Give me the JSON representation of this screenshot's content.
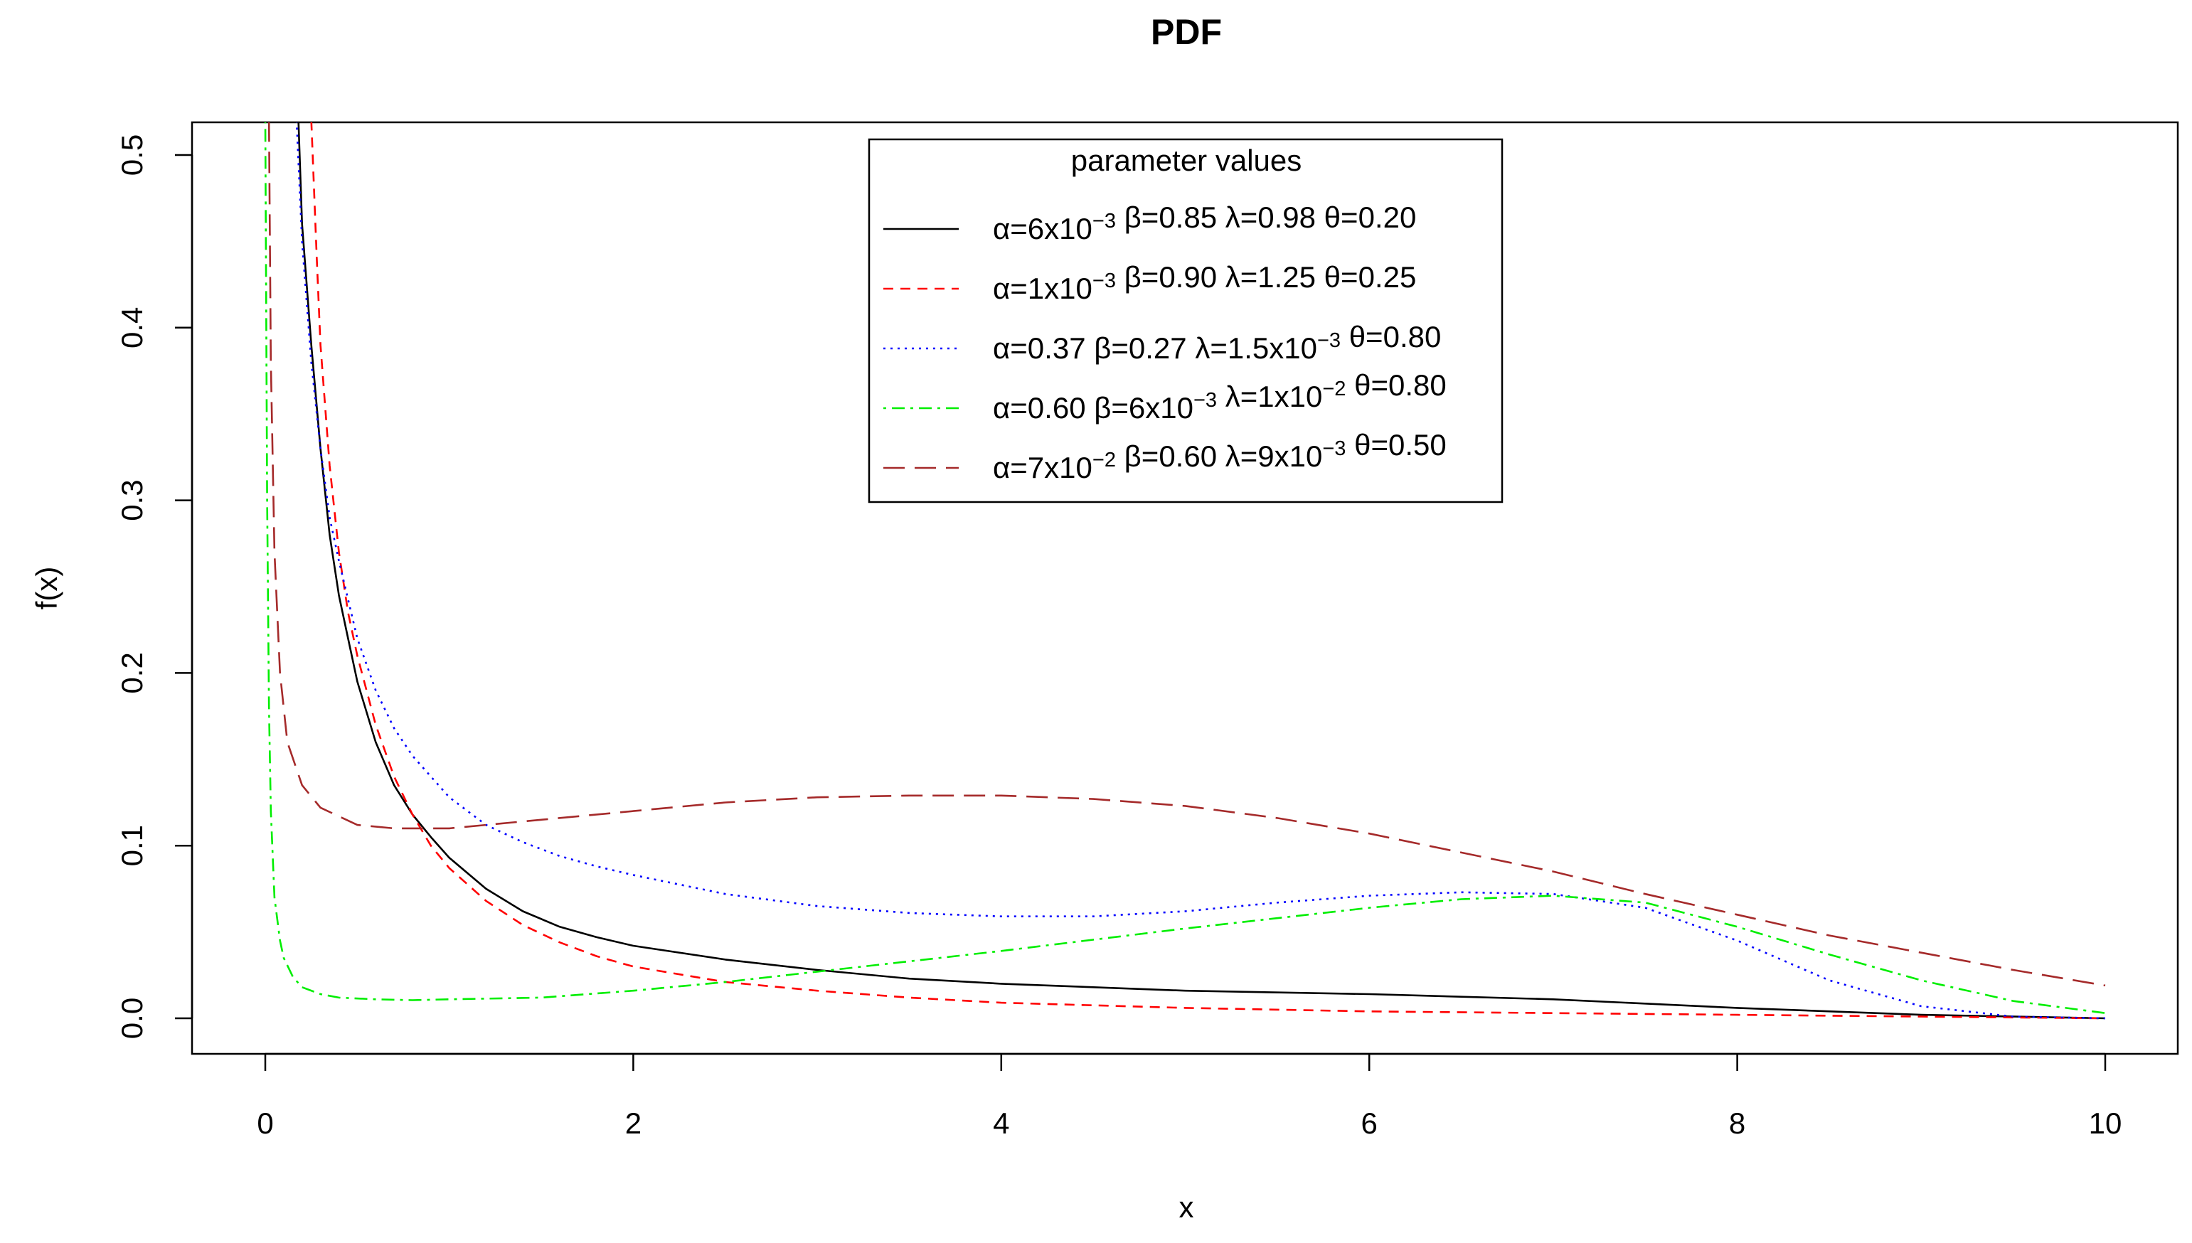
{
  "chart_data": {
    "type": "line",
    "title": "PDF",
    "xlabel": "x",
    "ylabel": "f(x)",
    "xlim": [
      0,
      10
    ],
    "ylim": [
      0,
      0.52
    ],
    "xticks": [
      "0",
      "2",
      "4",
      "6",
      "8",
      "10"
    ],
    "yticks": [
      "0.0",
      "0.1",
      "0.2",
      "0.3",
      "0.4",
      "0.5"
    ],
    "grid": false,
    "legend": {
      "title": "parameter values",
      "placement": "top-center"
    },
    "series": [
      {
        "name": "α=6x10⁻³ β=0.85 λ=0.98 θ=0.20",
        "legend_parts": [
          [
            "α=6x10",
            ""
          ],
          [
            "−3",
            "sup"
          ],
          [
            " β=0.85 λ=0.98 θ=0.20",
            ""
          ]
        ],
        "color": "#000000",
        "dash": "solid",
        "x": [
          0.18,
          0.2,
          0.25,
          0.3,
          0.35,
          0.4,
          0.45,
          0.5,
          0.6,
          0.7,
          0.8,
          0.9,
          1.0,
          1.2,
          1.4,
          1.6,
          1.8,
          2.0,
          2.5,
          3.0,
          3.5,
          4.0,
          5.0,
          6.0,
          7.0,
          8.0,
          9.0,
          10.0
        ],
        "y": [
          0.52,
          0.46,
          0.39,
          0.33,
          0.28,
          0.245,
          0.22,
          0.195,
          0.16,
          0.135,
          0.118,
          0.105,
          0.093,
          0.075,
          0.062,
          0.053,
          0.047,
          0.042,
          0.034,
          0.028,
          0.023,
          0.02,
          0.016,
          0.014,
          0.011,
          0.006,
          0.002,
          0.0
        ]
      },
      {
        "name": "α=1x10⁻³ β=0.90 λ=1.25 θ=0.25",
        "legend_parts": [
          [
            "α=1x10",
            ""
          ],
          [
            "−3",
            "sup"
          ],
          [
            " β=0.90 λ=1.25 θ=0.25",
            ""
          ]
        ],
        "color": "#ff0000",
        "dash": "dashed",
        "x": [
          0.25,
          0.28,
          0.3,
          0.35,
          0.4,
          0.45,
          0.5,
          0.6,
          0.7,
          0.8,
          0.9,
          1.0,
          1.2,
          1.4,
          1.6,
          1.8,
          2.0,
          2.5,
          3.0,
          3.5,
          4.0,
          5.0,
          6.0,
          7.0,
          8.0,
          9.0,
          10.0
        ],
        "y": [
          0.52,
          0.44,
          0.39,
          0.32,
          0.27,
          0.235,
          0.21,
          0.17,
          0.14,
          0.118,
          0.1,
          0.087,
          0.068,
          0.054,
          0.044,
          0.036,
          0.03,
          0.021,
          0.016,
          0.012,
          0.009,
          0.006,
          0.004,
          0.003,
          0.002,
          0.001,
          0.0
        ]
      },
      {
        "name": "α=0.37 β=0.27 λ=1.5x10⁻³ θ=0.80",
        "legend_parts": [
          [
            "α=0.37 β=0.27 λ=1.5x10",
            ""
          ],
          [
            "−3",
            "sup"
          ],
          [
            " θ=0.80",
            ""
          ]
        ],
        "color": "#0000ff",
        "dash": "dotted",
        "x": [
          0.17,
          0.2,
          0.25,
          0.3,
          0.35,
          0.4,
          0.5,
          0.6,
          0.7,
          0.8,
          1.0,
          1.2,
          1.4,
          1.6,
          1.8,
          2.0,
          2.5,
          3.0,
          3.5,
          4.0,
          4.5,
          5.0,
          5.5,
          6.0,
          6.5,
          7.0,
          7.5,
          8.0,
          8.5,
          9.0,
          9.5,
          10.0
        ],
        "y": [
          0.52,
          0.45,
          0.38,
          0.33,
          0.29,
          0.265,
          0.22,
          0.19,
          0.168,
          0.152,
          0.128,
          0.112,
          0.102,
          0.094,
          0.088,
          0.083,
          0.072,
          0.065,
          0.061,
          0.059,
          0.059,
          0.062,
          0.067,
          0.071,
          0.073,
          0.072,
          0.064,
          0.045,
          0.022,
          0.007,
          0.001,
          0.0
        ]
      },
      {
        "name": "α=0.60 β=6x10⁻³ λ=1x10⁻² θ=0.80",
        "legend_parts": [
          [
            "α=0.60 β=6x10",
            ""
          ],
          [
            "−3",
            "sup"
          ],
          [
            " λ=1x10",
            ""
          ],
          [
            "−2",
            "sup"
          ],
          [
            " θ=0.80",
            ""
          ]
        ],
        "color": "#00ee00",
        "dash": "dotdash",
        "x": [
          0.0,
          0.01,
          0.02,
          0.03,
          0.05,
          0.08,
          0.1,
          0.15,
          0.2,
          0.3,
          0.4,
          0.6,
          0.8,
          1.0,
          1.5,
          2.0,
          2.5,
          3.0,
          3.5,
          4.0,
          5.0,
          6.0,
          6.5,
          7.0,
          7.5,
          8.0,
          8.5,
          9.0,
          9.5,
          10.0
        ],
        "y": [
          0.52,
          0.3,
          0.18,
          0.12,
          0.07,
          0.045,
          0.035,
          0.024,
          0.018,
          0.014,
          0.012,
          0.011,
          0.0105,
          0.011,
          0.012,
          0.016,
          0.021,
          0.027,
          0.033,
          0.039,
          0.052,
          0.064,
          0.069,
          0.071,
          0.067,
          0.053,
          0.037,
          0.022,
          0.01,
          0.003
        ]
      },
      {
        "name": "α=7x10⁻² β=0.60 λ=9x10⁻³ θ=0.50",
        "legend_parts": [
          [
            "α=7x10",
            ""
          ],
          [
            "−2",
            "sup"
          ],
          [
            " β=0.60 λ=9x10",
            ""
          ],
          [
            "−3",
            "sup"
          ],
          [
            " θ=0.50",
            ""
          ]
        ],
        "color": "#a52a2a",
        "dash": "longdash",
        "x": [
          0.02,
          0.03,
          0.05,
          0.08,
          0.12,
          0.2,
          0.3,
          0.5,
          0.7,
          1.0,
          1.5,
          2.0,
          2.5,
          3.0,
          3.5,
          4.0,
          4.5,
          5.0,
          5.5,
          6.0,
          6.5,
          7.0,
          7.5,
          8.0,
          8.5,
          9.0,
          9.5,
          10.0
        ],
        "y": [
          0.52,
          0.38,
          0.27,
          0.2,
          0.16,
          0.135,
          0.122,
          0.112,
          0.11,
          0.11,
          0.115,
          0.12,
          0.125,
          0.128,
          0.129,
          0.129,
          0.127,
          0.123,
          0.116,
          0.107,
          0.096,
          0.085,
          0.072,
          0.06,
          0.048,
          0.038,
          0.028,
          0.019
        ]
      }
    ]
  }
}
